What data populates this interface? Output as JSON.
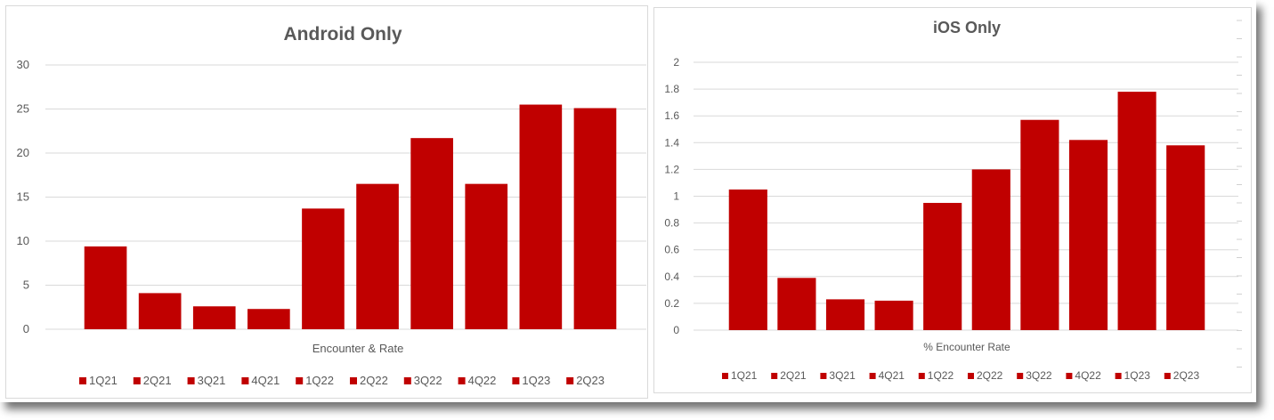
{
  "chart_data": [
    {
      "type": "bar",
      "title": "Android Only",
      "xlabel": "Encounter & Rate",
      "ylabel": "",
      "categories": [
        "1Q21",
        "2Q21",
        "3Q21",
        "4Q21",
        "1Q22",
        "2Q22",
        "3Q22",
        "4Q22",
        "1Q23",
        "2Q23"
      ],
      "values": [
        9.4,
        4.1,
        2.6,
        2.3,
        13.7,
        16.5,
        21.7,
        16.5,
        25.5,
        25.1
      ],
      "ylim": [
        0,
        30
      ],
      "yticks": [
        "0",
        "5",
        "10",
        "15",
        "20",
        "25",
        "30"
      ],
      "grid": true,
      "legend": "bottom",
      "bar_color": "#c00000"
    },
    {
      "type": "bar",
      "title": "iOS Only",
      "xlabel": "% Encounter Rate",
      "ylabel": "",
      "categories": [
        "1Q21",
        "2Q21",
        "3Q21",
        "4Q21",
        "1Q22",
        "2Q22",
        "3Q22",
        "4Q22",
        "1Q23",
        "2Q23"
      ],
      "values": [
        1.05,
        0.39,
        0.23,
        0.22,
        0.95,
        1.2,
        1.57,
        1.42,
        1.78,
        1.38
      ],
      "ylim": [
        0,
        2
      ],
      "yticks": [
        "0",
        "0.2",
        "0.4",
        "0.6",
        "0.8",
        "1",
        "1.2",
        "1.4",
        "1.6",
        "1.8",
        "2"
      ],
      "grid": true,
      "legend": "bottom",
      "bar_color": "#c00000"
    }
  ]
}
